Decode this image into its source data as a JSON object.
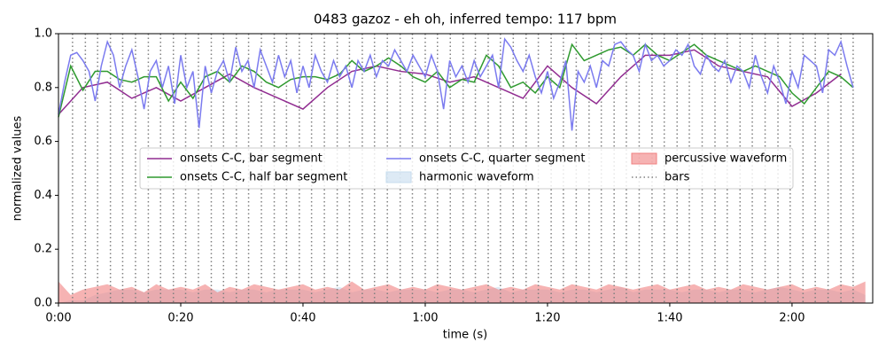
{
  "chart_data": {
    "type": "line",
    "title": "0483 gazoz - eh oh, inferred tempo: 117 bpm",
    "x_label": "time (s)",
    "y_label": "normalized values",
    "xlim": [
      0,
      133.2
    ],
    "ylim": [
      0,
      1
    ],
    "xticks": [
      {
        "value": 0,
        "label": "0:00"
      },
      {
        "value": 20,
        "label": "0:20"
      },
      {
        "value": 40,
        "label": "0:40"
      },
      {
        "value": 60,
        "label": "1:00"
      },
      {
        "value": 80,
        "label": "1:20"
      },
      {
        "value": 100,
        "label": "1:40"
      },
      {
        "value": 120,
        "label": "2:00"
      }
    ],
    "yticks": [
      {
        "value": 0,
        "label": "0.0"
      },
      0.2,
      0.4,
      0.6,
      0.8,
      {
        "value": 1,
        "label": "1.0"
      }
    ],
    "legend": "upper center",
    "series": [
      {
        "name": "onsets C-C, bar segment",
        "color": "#912d91",
        "kind": "line",
        "x": [
          0,
          4,
          8,
          12,
          16,
          20,
          24,
          28,
          32,
          36,
          40,
          44,
          48,
          52,
          56,
          60,
          64,
          68,
          72,
          76,
          80,
          84,
          88,
          92,
          96,
          100,
          104,
          108,
          112,
          116,
          120,
          124,
          128
        ],
        "values": [
          0.7,
          0.8,
          0.82,
          0.76,
          0.8,
          0.75,
          0.8,
          0.85,
          0.8,
          0.76,
          0.72,
          0.8,
          0.86,
          0.88,
          0.86,
          0.85,
          0.82,
          0.84,
          0.8,
          0.76,
          0.88,
          0.8,
          0.74,
          0.84,
          0.92,
          0.92,
          0.94,
          0.88,
          0.86,
          0.84,
          0.73,
          0.78,
          0.85
        ]
      },
      {
        "name": "onsets C-C, half bar segment",
        "color": "#2f9a2f",
        "kind": "line",
        "x": [
          0,
          2,
          4,
          6,
          8,
          10,
          12,
          14,
          16,
          18,
          20,
          22,
          24,
          26,
          28,
          30,
          32,
          34,
          36,
          38,
          40,
          42,
          44,
          46,
          48,
          50,
          52,
          54,
          56,
          58,
          60,
          62,
          64,
          66,
          68,
          70,
          72,
          74,
          76,
          78,
          80,
          82,
          84,
          86,
          88,
          90,
          92,
          94,
          96,
          98,
          100,
          102,
          104,
          106,
          108,
          110,
          112,
          114,
          116,
          118,
          120,
          122,
          124,
          126,
          128,
          130
        ],
        "values": [
          0.69,
          0.88,
          0.79,
          0.86,
          0.86,
          0.83,
          0.82,
          0.84,
          0.84,
          0.75,
          0.82,
          0.76,
          0.84,
          0.86,
          0.82,
          0.88,
          0.86,
          0.82,
          0.8,
          0.83,
          0.84,
          0.84,
          0.83,
          0.85,
          0.9,
          0.86,
          0.88,
          0.91,
          0.88,
          0.84,
          0.82,
          0.86,
          0.8,
          0.83,
          0.82,
          0.92,
          0.88,
          0.8,
          0.82,
          0.78,
          0.84,
          0.8,
          0.96,
          0.9,
          0.92,
          0.94,
          0.95,
          0.92,
          0.96,
          0.92,
          0.9,
          0.93,
          0.96,
          0.92,
          0.9,
          0.88,
          0.86,
          0.88,
          0.86,
          0.84,
          0.78,
          0.74,
          0.8,
          0.86,
          0.84,
          0.8
        ]
      },
      {
        "name": "onsets C-C, quarter segment",
        "color": "#7b7bef",
        "kind": "line",
        "x": [
          0,
          1,
          2,
          3,
          4,
          5,
          6,
          7,
          8,
          9,
          10,
          11,
          12,
          13,
          14,
          15,
          16,
          17,
          18,
          19,
          20,
          21,
          22,
          23,
          24,
          25,
          26,
          27,
          28,
          29,
          30,
          31,
          32,
          33,
          34,
          35,
          36,
          37,
          38,
          39,
          40,
          41,
          42,
          43,
          44,
          45,
          46,
          47,
          48,
          49,
          50,
          51,
          52,
          53,
          54,
          55,
          56,
          57,
          58,
          59,
          60,
          61,
          62,
          63,
          64,
          65,
          66,
          67,
          68,
          69,
          70,
          71,
          72,
          73,
          74,
          75,
          76,
          77,
          78,
          79,
          80,
          81,
          82,
          83,
          84,
          85,
          86,
          87,
          88,
          89,
          90,
          91,
          92,
          93,
          94,
          95,
          96,
          97,
          98,
          99,
          100,
          101,
          102,
          103,
          104,
          105,
          106,
          107,
          108,
          109,
          110,
          111,
          112,
          113,
          114,
          115,
          116,
          117,
          118,
          119,
          120,
          121,
          122,
          123,
          124,
          125,
          126,
          127,
          128,
          129,
          130
        ],
        "values": [
          0.7,
          0.82,
          0.92,
          0.93,
          0.9,
          0.86,
          0.75,
          0.88,
          0.97,
          0.92,
          0.8,
          0.88,
          0.94,
          0.84,
          0.72,
          0.86,
          0.9,
          0.8,
          0.88,
          0.74,
          0.92,
          0.8,
          0.86,
          0.65,
          0.88,
          0.78,
          0.86,
          0.9,
          0.82,
          0.95,
          0.86,
          0.9,
          0.8,
          0.94,
          0.88,
          0.82,
          0.92,
          0.84,
          0.9,
          0.78,
          0.88,
          0.8,
          0.92,
          0.86,
          0.82,
          0.9,
          0.84,
          0.88,
          0.8,
          0.9,
          0.86,
          0.92,
          0.84,
          0.9,
          0.88,
          0.94,
          0.9,
          0.86,
          0.92,
          0.88,
          0.84,
          0.92,
          0.86,
          0.72,
          0.9,
          0.84,
          0.88,
          0.82,
          0.9,
          0.84,
          0.88,
          0.92,
          0.8,
          0.98,
          0.95,
          0.9,
          0.86,
          0.92,
          0.84,
          0.78,
          0.86,
          0.76,
          0.82,
          0.9,
          0.64,
          0.86,
          0.82,
          0.88,
          0.8,
          0.9,
          0.88,
          0.96,
          0.97,
          0.94,
          0.92,
          0.86,
          0.96,
          0.9,
          0.92,
          0.88,
          0.9,
          0.94,
          0.92,
          0.96,
          0.88,
          0.85,
          0.92,
          0.88,
          0.86,
          0.9,
          0.82,
          0.88,
          0.86,
          0.8,
          0.92,
          0.84,
          0.78,
          0.88,
          0.82,
          0.74,
          0.86,
          0.8,
          0.92,
          0.9,
          0.88,
          0.78,
          0.94,
          0.92,
          0.97,
          0.88,
          0.8
        ]
      },
      {
        "name": "harmonic waveform",
        "color": "#c6dcee",
        "kind": "area",
        "x": [
          0,
          2,
          4,
          6,
          8,
          10,
          12,
          14,
          16,
          18,
          20,
          22,
          24,
          26,
          28,
          30,
          32,
          34,
          36,
          38,
          40,
          42,
          44,
          46,
          48,
          50,
          52,
          54,
          56,
          58,
          60,
          62,
          64,
          66,
          68,
          70,
          72,
          74,
          76,
          78,
          80,
          82,
          84,
          86,
          88,
          90,
          92,
          94,
          96,
          98,
          100,
          102,
          104,
          106,
          108,
          110,
          112,
          114,
          116,
          118,
          120,
          122,
          124,
          126,
          128,
          130,
          132
        ],
        "values": [
          0.0,
          0.01,
          0.01,
          0.03,
          0.04,
          0.05,
          0.05,
          0.04,
          0.05,
          0.05,
          0.05,
          0.04,
          0.05,
          0.05,
          0.04,
          0.05,
          0.05,
          0.04,
          0.05,
          0.05,
          0.05,
          0.04,
          0.05,
          0.06,
          0.04,
          0.05,
          0.05,
          0.04,
          0.05,
          0.05,
          0.05,
          0.04,
          0.05,
          0.05,
          0.04,
          0.05,
          0.06,
          0.04,
          0.05,
          0.05,
          0.05,
          0.04,
          0.05,
          0.05,
          0.04,
          0.05,
          0.06,
          0.04,
          0.05,
          0.05,
          0.05,
          0.04,
          0.05,
          0.05,
          0.04,
          0.05,
          0.05,
          0.04,
          0.05,
          0.06,
          0.05,
          0.04,
          0.05,
          0.05,
          0.04,
          0.05,
          0.03
        ]
      },
      {
        "name": "percussive waveform",
        "color": "#f08080",
        "kind": "area",
        "x": [
          0,
          2,
          4,
          6,
          8,
          10,
          12,
          14,
          16,
          18,
          20,
          22,
          24,
          26,
          28,
          30,
          32,
          34,
          36,
          38,
          40,
          42,
          44,
          46,
          48,
          50,
          52,
          54,
          56,
          58,
          60,
          62,
          64,
          66,
          68,
          70,
          72,
          74,
          76,
          78,
          80,
          82,
          84,
          86,
          88,
          90,
          92,
          94,
          96,
          98,
          100,
          102,
          104,
          106,
          108,
          110,
          112,
          114,
          116,
          118,
          120,
          122,
          124,
          126,
          128,
          130,
          132
        ],
        "values": [
          0.08,
          0.03,
          0.05,
          0.06,
          0.07,
          0.05,
          0.06,
          0.04,
          0.07,
          0.05,
          0.06,
          0.05,
          0.07,
          0.04,
          0.06,
          0.05,
          0.07,
          0.06,
          0.05,
          0.06,
          0.07,
          0.05,
          0.06,
          0.05,
          0.08,
          0.05,
          0.06,
          0.07,
          0.05,
          0.06,
          0.05,
          0.07,
          0.06,
          0.05,
          0.06,
          0.07,
          0.05,
          0.06,
          0.05,
          0.07,
          0.06,
          0.05,
          0.07,
          0.06,
          0.05,
          0.07,
          0.06,
          0.05,
          0.06,
          0.07,
          0.05,
          0.06,
          0.07,
          0.05,
          0.06,
          0.05,
          0.07,
          0.06,
          0.05,
          0.06,
          0.07,
          0.05,
          0.06,
          0.05,
          0.07,
          0.06,
          0.08
        ]
      },
      {
        "name": "bars",
        "color": "#808080",
        "kind": "vlines",
        "x": [
          2.3,
          4.4,
          6.4,
          8.5,
          10.5,
          12.6,
          14.7,
          16.7,
          18.8,
          20.8,
          22.9,
          25.0,
          27.0,
          29.1,
          31.1,
          33.2,
          35.3,
          37.3,
          39.4,
          41.4,
          43.5,
          45.6,
          47.6,
          49.7,
          51.7,
          53.8,
          55.9,
          57.9,
          60.0,
          62.0,
          64.1,
          66.2,
          68.2,
          70.3,
          72.3,
          74.4,
          76.5,
          78.5,
          80.6,
          82.6,
          84.7,
          86.8,
          88.8,
          90.9,
          92.9,
          95.0,
          97.1,
          99.1,
          101.2,
          103.2,
          105.3,
          107.4,
          109.4,
          111.5,
          113.5,
          115.6,
          117.7,
          119.7,
          121.8,
          123.8,
          125.9,
          128.0,
          130.0
        ]
      }
    ]
  }
}
